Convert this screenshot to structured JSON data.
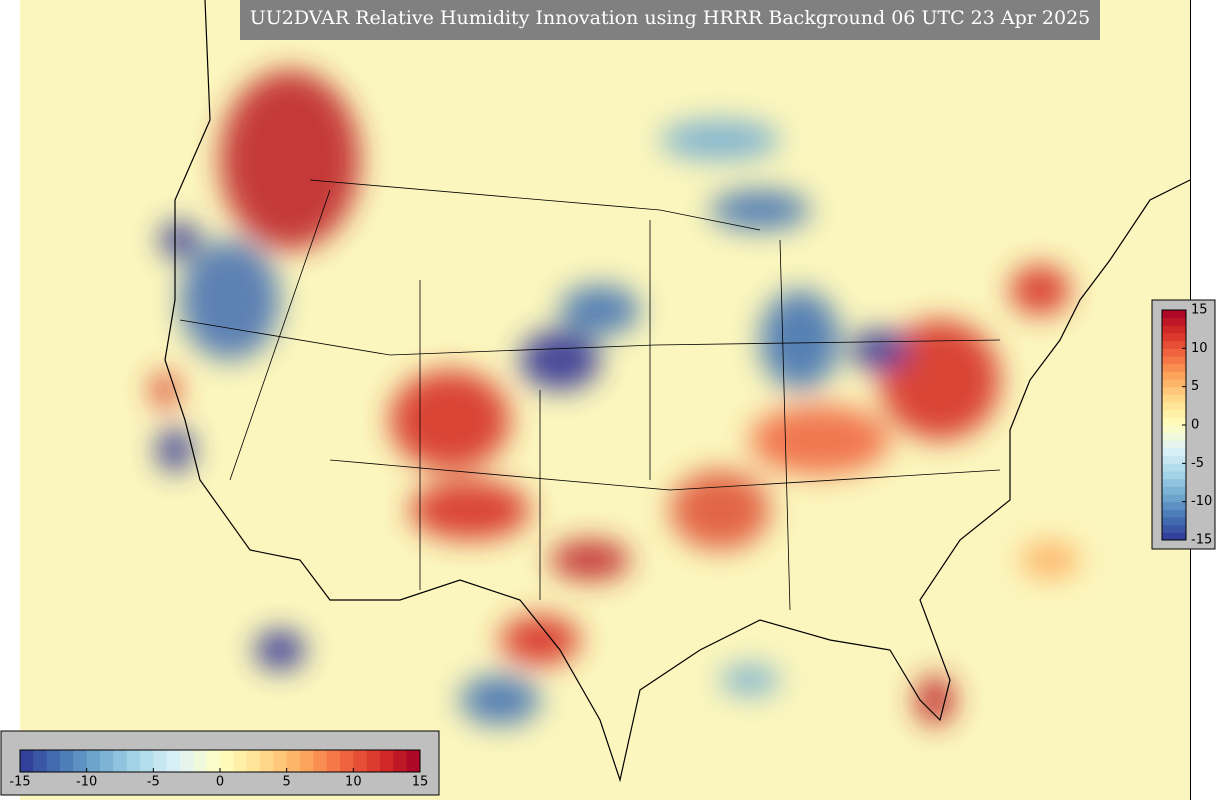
{
  "title": "UU2DVAR Relative Humidity Innovation using HRRR Background 06 UTC 23 Apr 2025",
  "colormap": [
    "#313695",
    "#4575b4",
    "#74add1",
    "#abd9e9",
    "#e0f3f8",
    "#ffffbf",
    "#fee090",
    "#fdae61",
    "#f46d43",
    "#d73027",
    "#a50026"
  ],
  "colorbars": [
    {
      "orientation": "horizontal",
      "lim": [
        -15,
        15
      ],
      "ticks": [
        -15,
        -10,
        -5,
        0,
        5,
        10,
        15
      ]
    },
    {
      "orientation": "vertical",
      "lim": [
        -15,
        15
      ],
      "ticks": [
        -15,
        -10,
        -5,
        0,
        5,
        10,
        15
      ]
    }
  ]
}
